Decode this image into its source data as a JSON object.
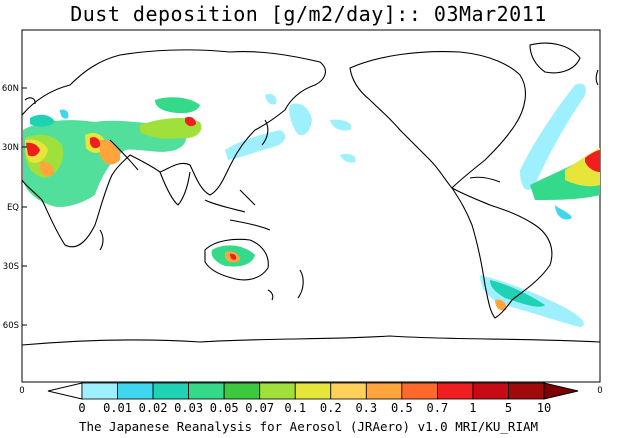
{
  "title": "Dust deposition [g/m2/day]:: 03Mar2011",
  "footer": "The Japanese Reanalysis for Aerosol (JRAero) v1.0 MRI/KU_RIAM",
  "map": {
    "lat_labels": [
      "60N",
      "30N",
      "EQ",
      "30S",
      "60S"
    ],
    "lon_labels": [
      "0",
      "0"
    ]
  },
  "colorbar": {
    "labels": [
      "0",
      "0.01",
      "0.02",
      "0.03",
      "0.05",
      "0.07",
      "0.1",
      "0.2",
      "0.3",
      "0.5",
      "0.7",
      "1",
      "5",
      "10"
    ],
    "colors": [
      "#ffffff",
      "#9ef0ff",
      "#3fd6f0",
      "#1fd2b4",
      "#34d98a",
      "#3dc93d",
      "#9fe03a",
      "#e6e63a",
      "#ffd05a",
      "#ffa53c",
      "#ff6a2c",
      "#f01e1e",
      "#c80a14",
      "#a00a0a",
      "#7d0000"
    ]
  }
}
